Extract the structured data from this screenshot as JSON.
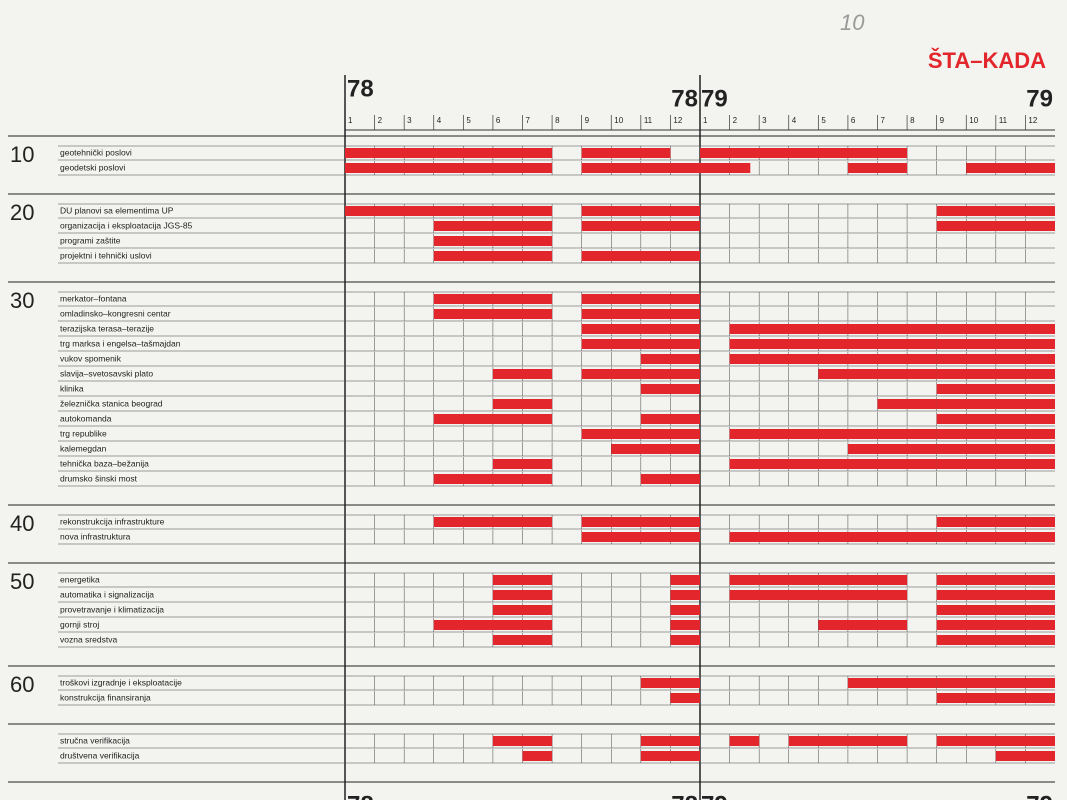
{
  "chart_data": {
    "type": "gantt",
    "title": "ŠTA–KADA",
    "annotation": "10",
    "color": "#e3262c",
    "years": [
      "78",
      "78",
      "79",
      "79"
    ],
    "months": [
      "1",
      "2",
      "3",
      "4",
      "5",
      "6",
      "7",
      "8",
      "9",
      "10",
      "11",
      "12",
      "1",
      "2",
      "3",
      "4",
      "5",
      "6",
      "7",
      "8",
      "9",
      "10",
      "11",
      "12"
    ],
    "xlim": [
      0,
      24
    ],
    "groups": [
      {
        "name": "10",
        "tasks": [
          {
            "name": "geotehnički poslovi",
            "bars": [
              [
                0,
                7
              ],
              [
                8,
                11
              ],
              [
                12,
                19
              ]
            ]
          },
          {
            "name": "geodetski poslovi",
            "bars": [
              [
                0,
                7
              ],
              [
                8,
                13.7
              ],
              [
                17,
                19
              ],
              [
                21,
                24
              ]
            ]
          }
        ]
      },
      {
        "name": "20",
        "tasks": [
          {
            "name": "DU planovi sa elementima UP",
            "bars": [
              [
                0,
                7
              ],
              [
                8,
                12
              ],
              [
                20,
                24
              ]
            ]
          },
          {
            "name": "organizacija i eksploatacija JGS-85",
            "bars": [
              [
                3,
                7
              ],
              [
                8,
                12
              ],
              [
                20,
                24
              ]
            ]
          },
          {
            "name": "programi zaštite",
            "bars": [
              [
                3,
                7
              ]
            ]
          },
          {
            "name": "projektni i tehnički uslovi",
            "bars": [
              [
                3,
                7
              ],
              [
                8,
                12
              ]
            ]
          }
        ]
      },
      {
        "name": "30",
        "tasks": [
          {
            "name": "merkator–fontana",
            "bars": [
              [
                3,
                7
              ],
              [
                8,
                12
              ]
            ]
          },
          {
            "name": "omladinsko–kongresni centar",
            "bars": [
              [
                3,
                7
              ],
              [
                8,
                12
              ]
            ]
          },
          {
            "name": "terazijska terasa–terazije",
            "bars": [
              [
                8,
                12
              ],
              [
                13,
                20
              ],
              [
                20,
                24
              ]
            ]
          },
          {
            "name": "trg marksa i engelsa–tašmajdan",
            "bars": [
              [
                8,
                12
              ],
              [
                13,
                20
              ],
              [
                20,
                24
              ]
            ]
          },
          {
            "name": "vukov spomenik",
            "bars": [
              [
                10,
                12
              ],
              [
                13,
                20
              ],
              [
                20,
                24
              ]
            ]
          },
          {
            "name": "slavija–svetosavski plato",
            "bars": [
              [
                5,
                7
              ],
              [
                8,
                12
              ],
              [
                16,
                20
              ],
              [
                20,
                24
              ]
            ]
          },
          {
            "name": "klinika",
            "bars": [
              [
                10,
                12
              ],
              [
                20,
                24
              ]
            ]
          },
          {
            "name": "železnička stanica beograd",
            "bars": [
              [
                5,
                7
              ],
              [
                18,
                20
              ],
              [
                20,
                24
              ]
            ]
          },
          {
            "name": "autokomanda",
            "bars": [
              [
                3,
                7
              ],
              [
                10,
                12
              ],
              [
                20,
                24
              ]
            ]
          },
          {
            "name": "trg republike",
            "bars": [
              [
                8,
                12
              ],
              [
                13,
                20
              ],
              [
                20,
                24
              ]
            ]
          },
          {
            "name": "kalemegdan",
            "bars": [
              [
                9,
                12
              ],
              [
                17,
                20
              ],
              [
                20,
                24
              ]
            ]
          },
          {
            "name": "tehnička baza–bežanija",
            "bars": [
              [
                5,
                7
              ],
              [
                13,
                20
              ],
              [
                20,
                24
              ]
            ]
          },
          {
            "name": "drumsko šinski most",
            "bars": [
              [
                3,
                7
              ],
              [
                10,
                12
              ]
            ]
          }
        ]
      },
      {
        "name": "40",
        "tasks": [
          {
            "name": "rekonstrukcija infrastrukture",
            "bars": [
              [
                3,
                7
              ],
              [
                8,
                12
              ],
              [
                20,
                24
              ]
            ]
          },
          {
            "name": "nova infrastruktura",
            "bars": [
              [
                8,
                12
              ],
              [
                13,
                20
              ],
              [
                20,
                24
              ]
            ]
          }
        ]
      },
      {
        "name": "50",
        "tasks": [
          {
            "name": "energetika",
            "bars": [
              [
                5,
                7
              ],
              [
                11,
                12
              ],
              [
                13,
                19
              ],
              [
                20,
                24
              ]
            ]
          },
          {
            "name": "automatika i signalizacija",
            "bars": [
              [
                5,
                7
              ],
              [
                11,
                12
              ],
              [
                13,
                19
              ],
              [
                20,
                24
              ]
            ]
          },
          {
            "name": "provetravanje i klimatizacija",
            "bars": [
              [
                5,
                7
              ],
              [
                11,
                12
              ],
              [
                20,
                24
              ]
            ]
          },
          {
            "name": "gornji stroj",
            "bars": [
              [
                3,
                7
              ],
              [
                11,
                12
              ],
              [
                16,
                19
              ],
              [
                20,
                24
              ]
            ]
          },
          {
            "name": "vozna sredstva",
            "bars": [
              [
                5,
                7
              ],
              [
                11,
                12
              ],
              [
                20,
                24
              ]
            ]
          }
        ]
      },
      {
        "name": "60",
        "tasks": [
          {
            "name": "troškovi izgradnje i eksploatacije",
            "bars": [
              [
                10,
                12
              ],
              [
                17,
                20
              ],
              [
                20,
                24
              ]
            ]
          },
          {
            "name": "konstrukcija finansiranja",
            "bars": [
              [
                11,
                12
              ],
              [
                20,
                24
              ]
            ]
          }
        ]
      },
      {
        "tasks": [
          {
            "name": "stručna verifikacija",
            "bars": [
              [
                5,
                7
              ],
              [
                10,
                12
              ],
              [
                13,
                14
              ],
              [
                15,
                19
              ],
              [
                20,
                24
              ]
            ]
          },
          {
            "name": "društvena verifikacija",
            "bars": [
              [
                6,
                7
              ],
              [
                10,
                12
              ],
              [
                22,
                24
              ]
            ]
          }
        ]
      }
    ]
  }
}
